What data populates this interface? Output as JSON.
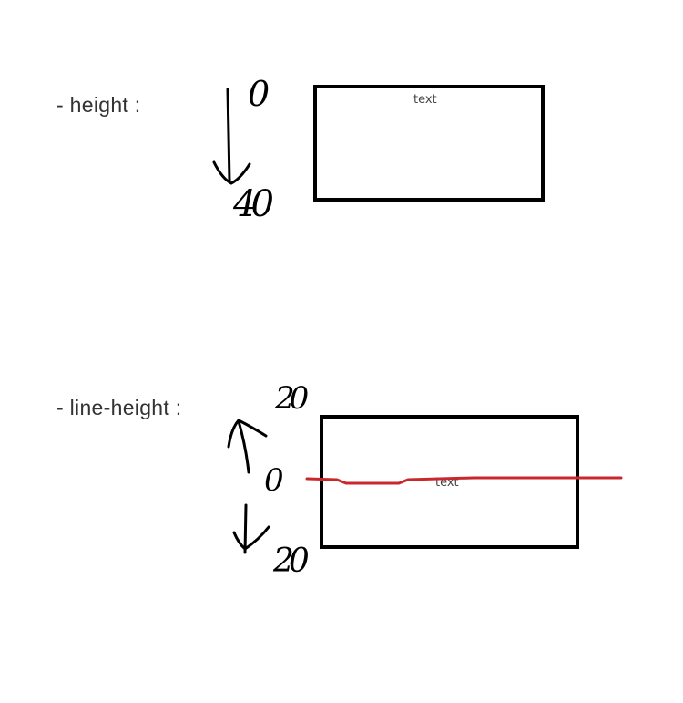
{
  "sections": {
    "height": {
      "label": "- height :",
      "box_text": "text",
      "annotation_top": "0",
      "annotation_bottom": "40"
    },
    "line_height": {
      "label": "- line-height :",
      "box_text": "text",
      "annotation_top": "20",
      "annotation_middle": "0",
      "annotation_bottom": "20"
    }
  },
  "colors": {
    "baseline": "#c8282d",
    "ink": "#000000",
    "label": "#333333"
  }
}
